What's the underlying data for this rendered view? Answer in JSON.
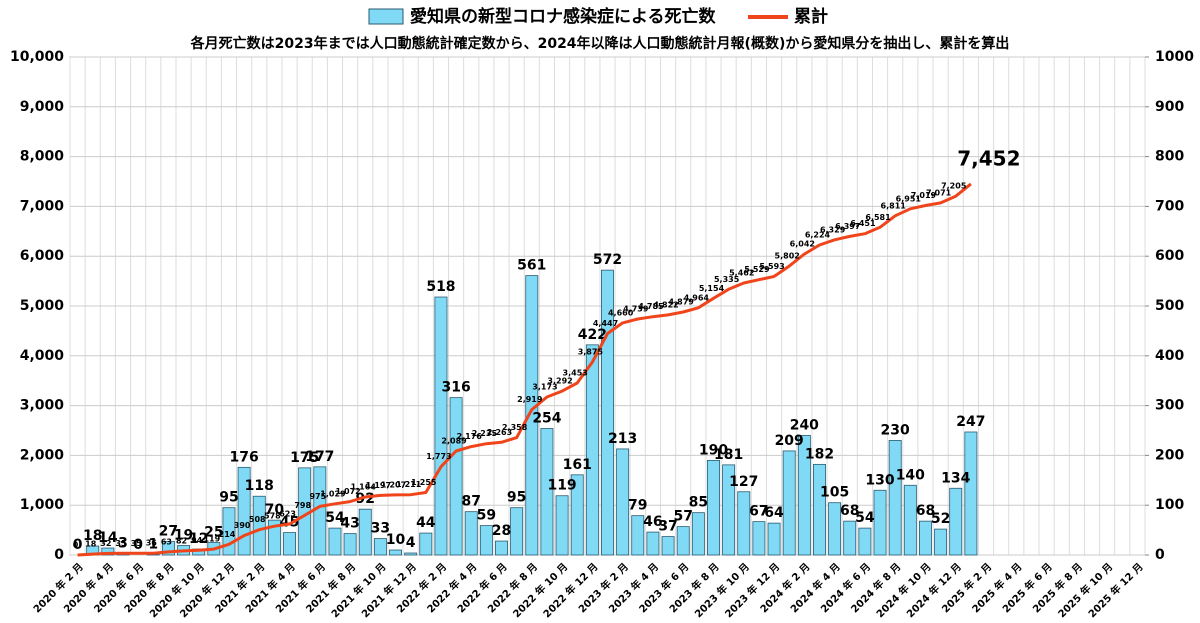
{
  "chart_data": {
    "type": "bar_line",
    "subtitle": "各月死亡数は2023年までは人口動態統計確定数から、2024年以降は人口動態統計月報(概数)から愛知県分を抽出し、累計を算出",
    "categories": [
      "2020 年 2 月",
      null,
      "2020 年 4 月",
      null,
      "2020 年 6 月",
      null,
      "2020 年 8 月",
      null,
      "2020 年 10 月",
      null,
      "2020 年 12 月",
      null,
      "2021 年 2 月",
      null,
      "2021 年 4 月",
      null,
      "2021 年 6 月",
      null,
      "2021 年 8 月",
      null,
      "2021 年 10 月",
      null,
      "2021 年 12 月",
      null,
      "2022 年 2 月",
      null,
      "2022 年 4 月",
      null,
      "2022 年 6 月",
      null,
      "2022 年 8 月",
      null,
      "2022 年 10 月",
      null,
      "2022 年 12 月",
      null,
      "2023 年 2 月",
      null,
      "2023 年 4 月",
      null,
      "2023 年 6 月",
      null,
      "2023 年 8 月",
      null,
      "2023 年 10 月",
      null,
      "2023 年 12 月",
      null,
      "2024 年 2 月",
      null,
      "2024 年 4 月",
      null,
      "2024 年 6 月",
      null,
      "2024 年 8 月",
      null,
      "2024 年 10 月",
      null,
      "2024 年 12 月",
      null,
      "2025 年 2 月",
      null,
      "2025 年 4 月",
      null,
      "2025 年 6 月",
      null,
      "2025 年 8 月",
      null,
      "2025 年 10 月",
      null,
      "2025 年 12 月"
    ],
    "series": [
      {
        "name": "愛知県の新型コロナ感染症による死亡数",
        "type": "bar",
        "axis": "y2",
        "color": "#80daf5",
        "values": [
          0,
          18,
          14,
          3,
          0,
          1,
          27,
          19,
          12,
          25,
          95,
          176,
          118,
          70,
          45,
          175,
          177,
          54,
          43,
          92,
          33,
          10,
          4,
          44,
          518,
          316,
          87,
          59,
          28,
          95,
          561,
          254,
          119,
          161,
          422,
          572,
          213,
          79,
          46,
          37,
          57,
          85,
          190,
          181,
          127,
          67,
          64,
          209,
          240,
          182,
          105,
          68,
          54,
          130,
          230,
          140,
          68,
          52,
          134,
          247,
          null,
          null,
          null,
          null,
          null,
          null,
          null,
          null,
          null,
          null,
          null
        ]
      },
      {
        "name": "累計",
        "type": "line",
        "color": "#f0441a",
        "values": [
          0,
          18,
          32,
          35,
          35,
          36,
          63,
          82,
          94,
          119,
          214,
          390,
          508,
          578,
          623,
          798,
          975,
          1029,
          1072,
          1164,
          1197,
          1207,
          1211,
          1255,
          1773,
          2089,
          2176,
          2235,
          2263,
          2358,
          2919,
          3173,
          3292,
          3453,
          3875,
          4447,
          4660,
          4739,
          4785,
          4822,
          4879,
          4964,
          5154,
          5335,
          5462,
          5529,
          5593,
          5802,
          6042,
          6224,
          6329,
          6397,
          6451,
          6581,
          6811,
          6951,
          7019,
          7071,
          7205,
          7452,
          null,
          null,
          null,
          null,
          null,
          null,
          null,
          null,
          null,
          null,
          null
        ],
        "value_labels": [
          "0",
          "18",
          "32",
          "35",
          "35",
          "36",
          "63",
          "82",
          "94",
          "119",
          "214",
          "390",
          "508",
          "578",
          "623",
          "798",
          "975",
          "1,029",
          "1,072",
          "1,164",
          "1,197",
          "1,207",
          "1,211",
          "1,255",
          "1,773",
          "2,089",
          "2,176",
          "2,235",
          "2,263",
          "2,358",
          "2,919",
          "3,173",
          "3,292",
          "3,453",
          "3,875",
          "4,447",
          "4,660",
          "4,739",
          "4,785",
          "4,822",
          "4,879",
          "4,964",
          "5,154",
          "5,335",
          "5,462",
          "5,529",
          "5,593",
          "5,802",
          "6,042",
          "6,224",
          "6,329",
          "6,397",
          "6,451",
          "6,581",
          "6,811",
          "6,951",
          "7,019",
          "7,071",
          "7,205",
          "7,452",
          null,
          null,
          null,
          null,
          null,
          null,
          null,
          null,
          null,
          null,
          null
        ]
      }
    ],
    "ylim": [
      0,
      10000
    ],
    "yticks": [
      0,
      {
        "value": 1000,
        "label": "1,000"
      },
      {
        "value": 2000,
        "label": "2,000"
      },
      {
        "value": 3000,
        "label": "3,000"
      },
      {
        "value": 4000,
        "label": "4,000"
      },
      {
        "value": 5000,
        "label": "5,000"
      },
      {
        "value": 6000,
        "label": "6,000"
      },
      {
        "value": 7000,
        "label": "7,000"
      },
      {
        "value": 8000,
        "label": "8,000"
      },
      {
        "value": 9000,
        "label": "9,000"
      },
      {
        "value": 10000,
        "label": "10,000"
      }
    ],
    "y2lim": [
      0,
      1000
    ],
    "y2ticks": [
      0,
      100,
      200,
      300,
      400,
      500,
      600,
      700,
      800,
      900,
      1000
    ],
    "grid": true,
    "legend": "top"
  }
}
